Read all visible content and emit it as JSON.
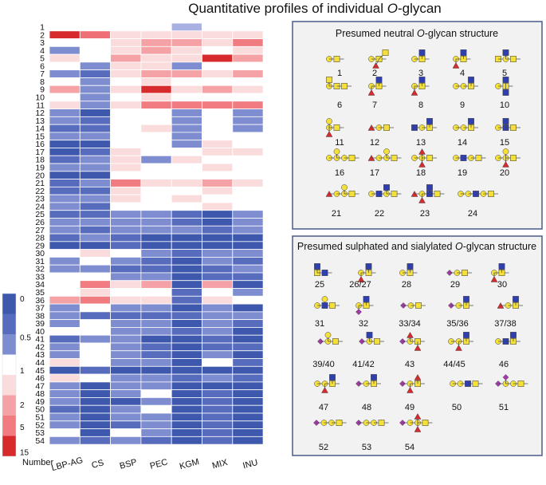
{
  "chart_data": {
    "type": "heatmap",
    "title": "Quantitative profiles of individual O-glycan",
    "title_prefix": "Quantitative profiles of individual ",
    "title_italic": "O",
    "title_suffix": "-glycan",
    "xlabel": "Number",
    "columns": [
      "LBP-AG",
      "CS",
      "BSP",
      "PEC",
      "KGM",
      "MIX",
      "INU"
    ],
    "rows": [
      "1",
      "2",
      "3",
      "4",
      "5",
      "6",
      "7",
      "8",
      "9",
      "10",
      "11",
      "12",
      "13",
      "14",
      "15",
      "16",
      "17",
      "18",
      "19",
      "20",
      "21",
      "22",
      "23",
      "24",
      "25",
      "26",
      "27",
      "28",
      "29",
      "30",
      "31",
      "32",
      "33",
      "34",
      "35",
      "36",
      "37",
      "38",
      "39",
      "40",
      "41",
      "42",
      "43",
      "44",
      "45",
      "46",
      "47",
      "48",
      "49",
      "50",
      "51",
      "52",
      "53",
      "54"
    ],
    "values": [
      [
        1.0,
        1.0,
        1.0,
        1.0,
        0.7,
        1.0,
        1.0
      ],
      [
        15,
        6,
        1.5,
        1.5,
        1.5,
        1.5,
        1.5
      ],
      [
        1.0,
        1.0,
        1.5,
        3,
        3,
        1.5,
        5
      ],
      [
        0.5,
        1.0,
        1.5,
        3,
        1.5,
        1.0,
        1.5
      ],
      [
        1.5,
        1.0,
        3,
        1.5,
        1.5,
        15,
        3
      ],
      [
        1.0,
        0.5,
        1.5,
        1.5,
        0.5,
        1.0,
        1.0
      ],
      [
        0.5,
        0.3,
        1.5,
        3,
        3,
        1.5,
        3
      ],
      [
        1.0,
        0.5,
        1.0,
        1.5,
        1.0,
        1.0,
        1.0
      ],
      [
        3,
        0.5,
        1.5,
        15,
        1.5,
        3,
        1.5
      ],
      [
        1.0,
        0.5,
        1.0,
        1.5,
        1.0,
        1.0,
        1.0
      ],
      [
        1.5,
        0.5,
        1.5,
        5,
        5,
        5,
        5
      ],
      [
        0.5,
        0.1,
        1.0,
        1.0,
        0.5,
        1.0,
        0.5
      ],
      [
        0.5,
        0.3,
        1.0,
        1.0,
        0.5,
        1.0,
        0.5
      ],
      [
        0.3,
        0.3,
        1.0,
        1.5,
        0.5,
        1.0,
        0.5
      ],
      [
        0.5,
        0.5,
        1.0,
        1.0,
        0.5,
        1.0,
        1.0
      ],
      [
        0.1,
        0.1,
        1.0,
        1.0,
        0.5,
        1.5,
        1.0
      ],
      [
        0.1,
        0.3,
        1.5,
        1.0,
        1.0,
        1.5,
        1.5
      ],
      [
        0.3,
        0.5,
        1.5,
        0.5,
        1.5,
        1.0,
        1.0
      ],
      [
        0.5,
        0.5,
        1.5,
        1.0,
        1.0,
        1.5,
        1.0
      ],
      [
        0.1,
        0.1,
        1.0,
        1.0,
        1.0,
        1.0,
        1.0
      ],
      [
        0.3,
        0.5,
        5,
        1.5,
        1.5,
        3,
        1.5
      ],
      [
        0.3,
        0.3,
        1.5,
        1.0,
        1.0,
        1.5,
        1.0
      ],
      [
        0.5,
        0.5,
        1.5,
        1.0,
        1.5,
        1.0,
        1.0
      ],
      [
        0.5,
        0.3,
        1.0,
        1.0,
        1.0,
        1.5,
        1.0
      ],
      [
        0.3,
        0.3,
        0.5,
        0.5,
        0.3,
        0.1,
        0.5
      ],
      [
        0.5,
        0.5,
        0.5,
        0.5,
        0.3,
        0.1,
        0.5
      ],
      [
        0.5,
        0.3,
        0.5,
        0.5,
        0.5,
        0.3,
        0.5
      ],
      [
        0.3,
        0.5,
        0.3,
        0.1,
        0.1,
        0.1,
        0.1
      ],
      [
        0.1,
        0.1,
        0.3,
        0.1,
        0.1,
        0.1,
        0.1
      ],
      [
        1.0,
        1.5,
        1.0,
        0.5,
        0.3,
        0.5,
        0.5
      ],
      [
        0.5,
        1.0,
        0.5,
        0.3,
        0.1,
        0.5,
        0.3
      ],
      [
        0.5,
        0.5,
        0.3,
        0.3,
        0.1,
        0.3,
        0.5
      ],
      [
        1.0,
        1.0,
        0.5,
        0.5,
        0.1,
        0.3,
        0.3
      ],
      [
        1.0,
        5,
        1.5,
        3,
        0.1,
        3,
        0.1
      ],
      [
        1.0,
        1.5,
        1.0,
        1.0,
        0.3,
        1.0,
        0.5
      ],
      [
        3,
        5,
        1.5,
        1.5,
        0.3,
        1.5,
        1.0
      ],
      [
        0.5,
        1.0,
        0.5,
        0.5,
        0.1,
        0.5,
        0.1
      ],
      [
        0.5,
        0.3,
        0.3,
        0.3,
        0.3,
        0.5,
        0.5
      ],
      [
        0.5,
        1.0,
        0.5,
        0.5,
        0.1,
        0.5,
        0.3
      ],
      [
        1.0,
        1.0,
        0.5,
        0.5,
        0.3,
        0.5,
        0.1
      ],
      [
        0.3,
        0.5,
        0.5,
        0.1,
        0.1,
        0.3,
        0.1
      ],
      [
        0.5,
        1.0,
        0.5,
        0.3,
        0.1,
        0.3,
        0.3
      ],
      [
        0.5,
        1.0,
        0.5,
        0.3,
        0.1,
        0.5,
        0.1
      ],
      [
        1.5,
        1.0,
        0.5,
        0.5,
        0.1,
        1.0,
        0.3
      ],
      [
        0.1,
        0.3,
        0.1,
        0.1,
        0.1,
        0.1,
        0.1
      ],
      [
        1.5,
        1.0,
        0.5,
        0.5,
        0.3,
        0.5,
        0.3
      ],
      [
        0.5,
        0.1,
        0.5,
        0.5,
        0.1,
        0.1,
        0.1
      ],
      [
        0.5,
        0.1,
        0.5,
        1.0,
        0.1,
        0.3,
        0.1
      ],
      [
        0.5,
        0.1,
        0.1,
        0.5,
        0.1,
        0.3,
        0.1
      ],
      [
        0.3,
        0.1,
        0.5,
        1.0,
        0.1,
        0.3,
        0.1
      ],
      [
        0.5,
        0.1,
        0.5,
        0.5,
        0.1,
        0.3,
        0.1
      ],
      [
        0.5,
        0.1,
        0.3,
        0.5,
        0.1,
        0.3,
        0.1
      ],
      [
        1.0,
        0.1,
        1.0,
        0.5,
        0.1,
        0.3,
        0.1
      ],
      [
        0.5,
        0.3,
        0.5,
        0.3,
        0.1,
        0.3,
        0.1
      ]
    ],
    "color_scale": {
      "ticks": [
        "0",
        "0.5",
        "1",
        "2",
        "5",
        "15"
      ],
      "low_colors": [
        "#2f4ea3",
        "#5d6fc0",
        "#9fa8e0",
        "#ffffff"
      ],
      "high_colors": [
        "#ffffff",
        "#f6b0b3",
        "#ee6e74",
        "#d62a2d"
      ],
      "legend_steps": [
        0.1,
        0.3,
        0.5,
        1.0,
        1.5,
        3,
        5,
        15
      ]
    }
  },
  "neutral_panel": {
    "title_prefix": "Presumed neutral ",
    "title_italic": "O",
    "title_suffix": "-glycan structure",
    "labels": [
      "1",
      "2",
      "3",
      "4",
      "5",
      "6",
      "7",
      "8",
      "9",
      "10",
      "11",
      "12",
      "13",
      "14",
      "15",
      "16",
      "17",
      "18",
      "19",
      "20",
      "21",
      "22",
      "23",
      "24"
    ]
  },
  "sialylated_panel": {
    "title_prefix": "Presumed sulphated and sialylated ",
    "title_italic": "O",
    "title_suffix": "-glycan structure",
    "labels": [
      "25",
      "26/27",
      "28",
      "29",
      "30",
      "31",
      "32",
      "33/34",
      "35/36",
      "37/38",
      "39/40",
      "41/42",
      "43",
      "44/45",
      "46",
      "47",
      "48",
      "49",
      "50",
      "51",
      "52",
      "53",
      "54"
    ]
  },
  "colors": {
    "galactose": "#f5e03a",
    "galnac": "#f5e03a",
    "glcnac": "#2f3fb0",
    "fucose": "#d62a2d",
    "sialic": "#a23aa8",
    "panel_border": "#4a5a8a",
    "panel_fill": "#f2f2f2"
  }
}
